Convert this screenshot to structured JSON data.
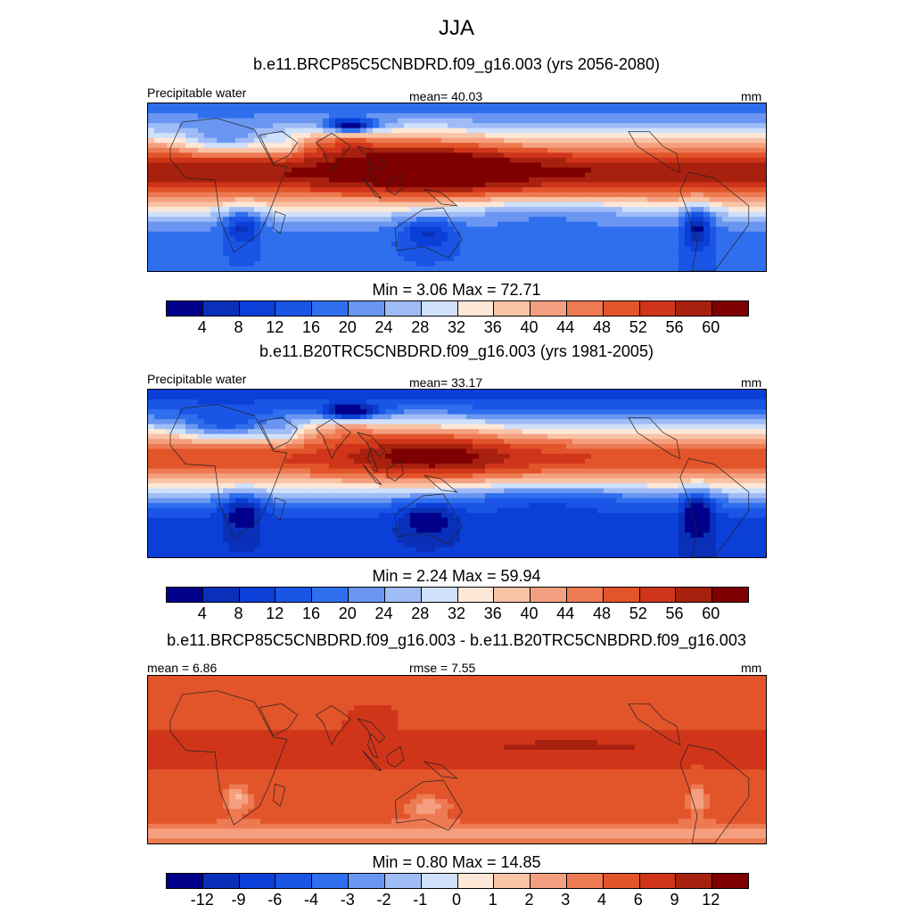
{
  "figure": {
    "title": "JJA"
  },
  "panels": [
    {
      "id": "future",
      "case_title": "b.e11.BRCP85C5CNBDRD.f09_g16.003 (yrs 2056-2080)",
      "left_label": "Precipitable water",
      "center_label": "mean=  40.03",
      "right_label": "mm",
      "minmax": "Min =   3.06 Max =  72.71",
      "ticks": [
        "4",
        "8",
        "12",
        "16",
        "20",
        "24",
        "28",
        "32",
        "36",
        "40",
        "44",
        "48",
        "52",
        "56",
        "60"
      ],
      "palette": "abs",
      "bias": 8
    },
    {
      "id": "present",
      "case_title": "b.e11.B20TRC5CNBDRD.f09_g16.003 (yrs 1981-2005)",
      "left_label": "Precipitable water",
      "center_label": "mean=  33.17",
      "right_label": "mm",
      "minmax": "Min =   2.24 Max =  59.94",
      "ticks": [
        "4",
        "8",
        "12",
        "16",
        "20",
        "24",
        "28",
        "32",
        "36",
        "40",
        "44",
        "48",
        "52",
        "56",
        "60"
      ],
      "palette": "abs",
      "bias": 0
    },
    {
      "id": "difference",
      "case_title": "b.e11.BRCP85C5CNBDRD.f09_g16.003 - b.e11.B20TRC5CNBDRD.f09_g16.003",
      "left_label": "mean =   6.86",
      "center_label": "rmse =   7.55",
      "right_label": "mm",
      "minmax": "Min =   0.80 Max =  14.85",
      "ticks": [
        "-12",
        "-9",
        "-6",
        "-4",
        "-3",
        "-2",
        "-1",
        "0",
        "1",
        "2",
        "3",
        "4",
        "6",
        "9",
        "12"
      ],
      "palette": "diff",
      "bias": 0
    }
  ],
  "colors": {
    "scale": [
      "#00008b",
      "#0a2fb8",
      "#0b3fd8",
      "#1a55e6",
      "#2f6fee",
      "#6a96f2",
      "#9fbcf6",
      "#cfe0fa",
      "#fde8d8",
      "#f9c3a6",
      "#f4a080",
      "#ee7a52",
      "#e2542a",
      "#d0351a",
      "#a8200e",
      "#7f0000"
    ]
  },
  "chart_data": [
    {
      "type": "heatmap",
      "title": "b.e11.BRCP85C5CNBDRD.f09_g16.003 (yrs 2056-2080)",
      "variable": "Precipitable water",
      "units": "mm",
      "mean": 40.03,
      "min": 3.06,
      "max": 72.71,
      "levels": [
        4,
        8,
        12,
        16,
        20,
        24,
        28,
        32,
        36,
        40,
        44,
        48,
        52,
        56,
        60
      ]
    },
    {
      "type": "heatmap",
      "title": "b.e11.B20TRC5CNBDRD.f09_g16.003 (yrs 1981-2005)",
      "variable": "Precipitable water",
      "units": "mm",
      "mean": 33.17,
      "min": 2.24,
      "max": 59.94,
      "levels": [
        4,
        8,
        12,
        16,
        20,
        24,
        28,
        32,
        36,
        40,
        44,
        48,
        52,
        56,
        60
      ]
    },
    {
      "type": "heatmap",
      "title": "b.e11.BRCP85C5CNBDRD.f09_g16.003 - b.e11.B20TRC5CNBDRD.f09_g16.003",
      "units": "mm",
      "mean": 6.86,
      "rmse": 7.55,
      "min": 0.8,
      "max": 14.85,
      "levels": [
        -12,
        -9,
        -6,
        -4,
        -3,
        -2,
        -1,
        0,
        1,
        2,
        3,
        4,
        6,
        9,
        12
      ]
    }
  ]
}
